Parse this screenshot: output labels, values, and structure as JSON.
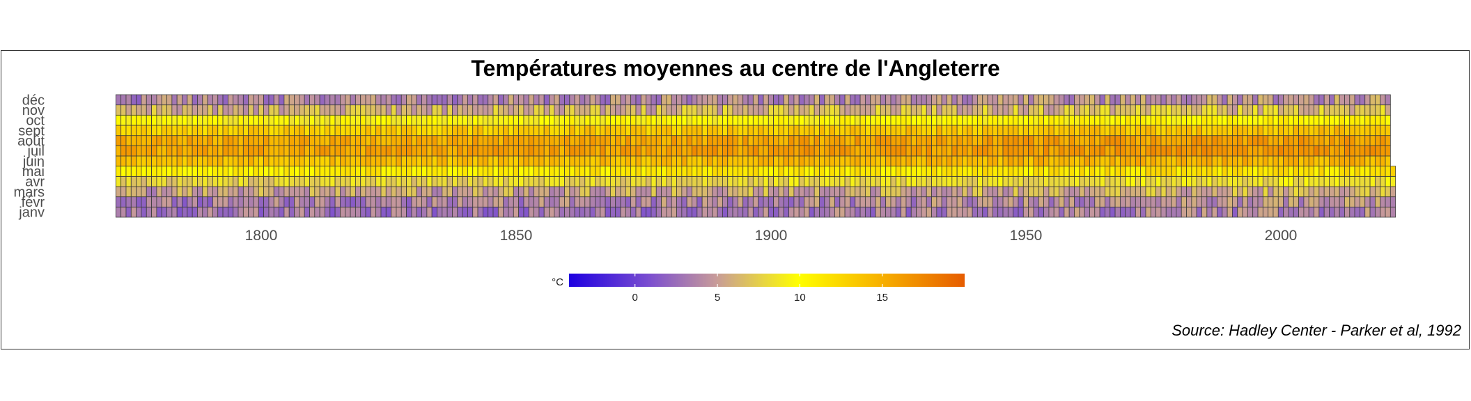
{
  "title": "Températures moyennes au centre de l'Angleterre",
  "source": "Source: Hadley Center - Parker et al, 1992",
  "chart_data": {
    "type": "heatmap",
    "title": "Températures moyennes au centre de l'Angleterre",
    "x_range": [
      1772,
      2022
    ],
    "x_ticks": [
      1800,
      1850,
      1900,
      1950,
      2000
    ],
    "y_categories": [
      "janv",
      "févr",
      "mars",
      "avr",
      "mai",
      "juin",
      "juil",
      "août",
      "sept",
      "oct",
      "nov",
      "déc"
    ],
    "monthly_climatology_celsius": [
      3.3,
      3.9,
      5.6,
      8.0,
      11.3,
      14.3,
      16.0,
      15.6,
      13.4,
      10.0,
      6.3,
      4.2
    ],
    "last_year_partial_months": 5,
    "legend": {
      "title": "°C",
      "ticks": [
        0,
        5,
        10,
        15
      ],
      "range": [
        -4,
        20
      ],
      "colors": [
        "#1e00e0",
        "#7a4dd0",
        "#c79a9a",
        "#ffff00",
        "#f7b000",
        "#e65c00"
      ],
      "color_stops": [
        0,
        0.2,
        0.37,
        0.58,
        0.79,
        1
      ]
    }
  }
}
